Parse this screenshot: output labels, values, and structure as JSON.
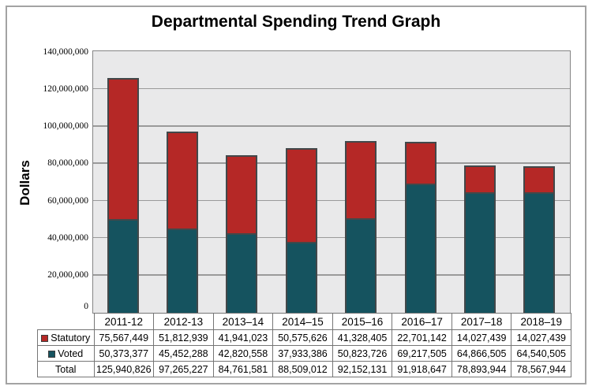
{
  "chart_data": {
    "type": "bar",
    "stacked": true,
    "stack_bottom_to_top": [
      "Voted",
      "Statutory"
    ],
    "title": "Departmental Spending Trend Graph",
    "xlabel": "",
    "ylabel": "Dollars",
    "ylim": [
      0,
      140000000
    ],
    "grid": true,
    "legend_position": "table-row-labels",
    "y_ticks": [
      "0",
      "20,000,000",
      "40,000,000",
      "60,000,000",
      "80,000,000",
      "100,000,000",
      "120,000,000",
      "140,000,000"
    ],
    "categories": [
      "2011-12",
      "2012-13",
      "2013–14",
      "2014–15",
      "2015–16",
      "2016–17",
      "2017–18",
      "2018–19"
    ],
    "series": [
      {
        "name": "Statutory",
        "color": "#b52826",
        "values": [
          75567449,
          51812939,
          41941023,
          50575626,
          41328405,
          22701142,
          14027439,
          14027439
        ]
      },
      {
        "name": "Voted",
        "color": "#15535f",
        "values": [
          50373377,
          45452288,
          42820558,
          37933386,
          50823726,
          69217505,
          64866505,
          64540505
        ]
      }
    ],
    "total_row": {
      "name": "Total",
      "values": [
        125940826,
        97265227,
        84761581,
        88509012,
        92152131,
        91918647,
        78893944,
        78567944
      ]
    }
  },
  "colors": {
    "statutory": "#b52826",
    "voted": "#15535f",
    "plot_background": "#e9e9ea",
    "gridline": "#9a9a9a",
    "bar_border": "#42484a",
    "table_border": "#767676",
    "figure_border": "#a3a3a3"
  }
}
